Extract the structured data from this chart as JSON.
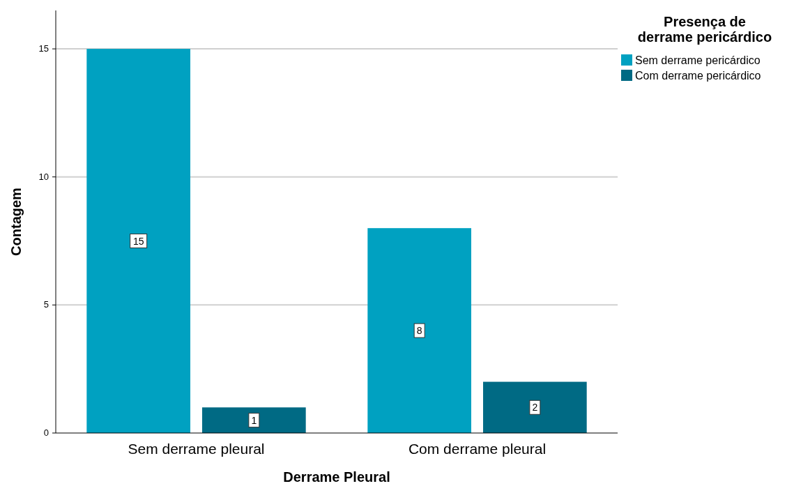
{
  "chart_data": {
    "type": "bar",
    "xlabel": "Derrame Pleural",
    "ylabel": "Contagem",
    "legend_title": "Presença de derrame pericárdico",
    "categories": [
      "Sem derrame pleural",
      "Com derrame pleural"
    ],
    "series": [
      {
        "name": "Sem derrame pericárdico",
        "color": "#00a1c1",
        "values": [
          15,
          8
        ]
      },
      {
        "name": "Com derrame pericárdico",
        "color": "#006a84",
        "values": [
          1,
          2
        ]
      }
    ],
    "ylim": [
      0,
      16.5
    ],
    "yticks": [
      0,
      5,
      10,
      15
    ],
    "grid": "y",
    "legend": "top right",
    "data_labels": true
  }
}
